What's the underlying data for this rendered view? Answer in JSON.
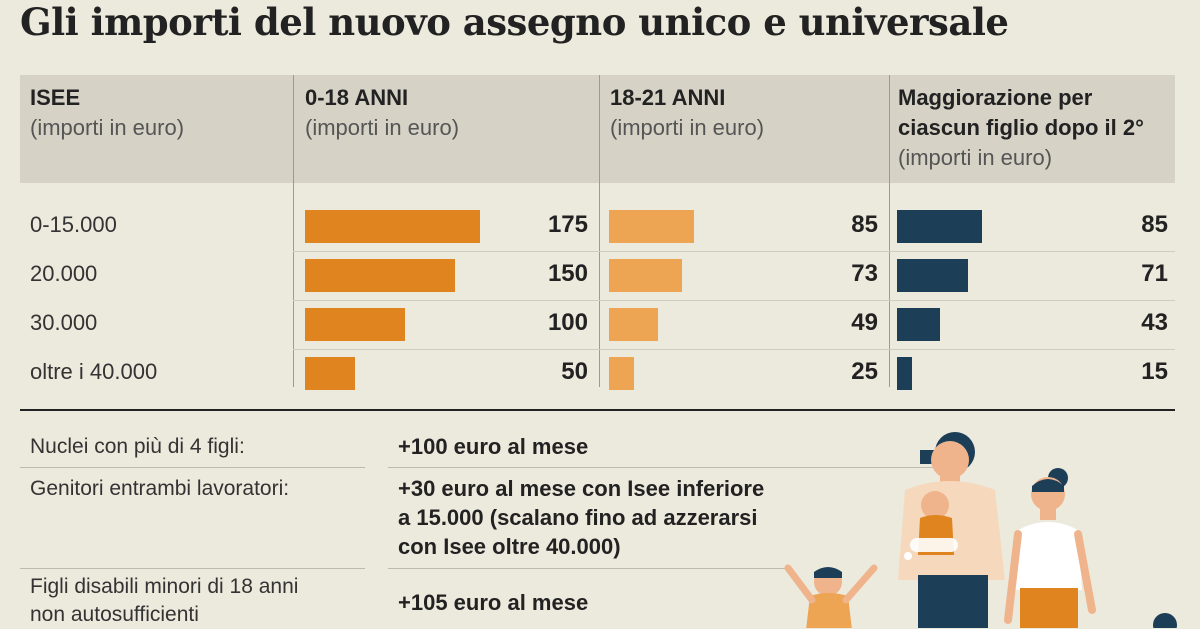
{
  "title": "Gli importi del nuovo assegno unico e universale",
  "columns": [
    {
      "title": "ISEE",
      "subtitle": "(importi in euro)"
    },
    {
      "title": "0-18 ANNI",
      "subtitle": "(importi in euro)"
    },
    {
      "title": "18-21 ANNI",
      "subtitle": "(importi in euro)"
    },
    {
      "title_lines": [
        "Maggiorazione per",
        "ciascun figlio dopo il 2°"
      ],
      "subtitle": "(importi in euro)"
    }
  ],
  "chart_data": {
    "type": "bar",
    "categories": [
      "0-15.000",
      "20.000",
      "30.000",
      "oltre i 40.000"
    ],
    "series": [
      {
        "name": "0-18 ANNI",
        "values": [
          175,
          150,
          100,
          50
        ]
      },
      {
        "name": "18-21 ANNI",
        "values": [
          85,
          73,
          49,
          25
        ]
      },
      {
        "name": "Maggiorazione per ciascun figlio dopo il 2°",
        "values": [
          85,
          71,
          43,
          15
        ]
      }
    ],
    "colors": [
      "#e0841f",
      "#eda453",
      "#1d3e57"
    ],
    "xlim": [
      0,
      175
    ]
  },
  "notes": [
    {
      "label_lines": [
        "Nuclei con più di 4 figli:"
      ],
      "value_lines": [
        "+100 euro al mese"
      ]
    },
    {
      "label_lines": [
        "Genitori entrambi lavoratori:"
      ],
      "value_lines": [
        "+30 euro al mese con Isee inferiore",
        "a 15.000 (scalano fino ad azzerarsi",
        "con Isee oltre 40.000)"
      ]
    },
    {
      "label_lines": [
        "Figli disabili minori di 18 anni",
        "non autosufficienti"
      ],
      "value_lines": [
        "+105 euro al mese"
      ]
    }
  ],
  "colors": {
    "background": "#ece9dd",
    "header_background": "#d6d3c6",
    "bar_0_18": "#e0841f",
    "bar_18_21": "#eda453",
    "bar_extra": "#1d3e57"
  },
  "illustration": {
    "icon": "family-illustration-icon"
  }
}
